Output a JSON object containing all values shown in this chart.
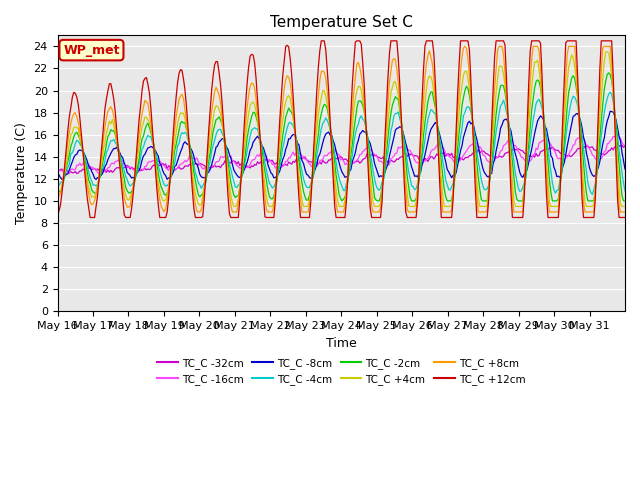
{
  "title": "Temperature Set C",
  "xlabel": "Time",
  "ylabel": "Temperature (C)",
  "ylim": [
    0,
    25
  ],
  "yticks": [
    0,
    2,
    4,
    6,
    8,
    10,
    12,
    14,
    16,
    18,
    20,
    22,
    24
  ],
  "x_tick_labels": [
    "May 16",
    "May 17",
    "May 18",
    "May 19",
    "May 20",
    "May 21",
    "May 22",
    "May 23",
    "May 24",
    "May 25",
    "May 26",
    "May 27",
    "May 28",
    "May 29",
    "May 30",
    "May 31"
  ],
  "legend_label": "WP_met",
  "series": [
    {
      "label": "TC_C -32cm",
      "color": "#cc00cc"
    },
    {
      "label": "TC_C -16cm",
      "color": "#ff44ff"
    },
    {
      "label": "TC_C -8cm",
      "color": "#0000cc"
    },
    {
      "label": "TC_C -4cm",
      "color": "#00cccc"
    },
    {
      "label": "TC_C -2cm",
      "color": "#00cc00"
    },
    {
      "label": "TC_C +4cm",
      "color": "#cccc00"
    },
    {
      "label": "TC_C +8cm",
      "color": "#ff9900"
    },
    {
      "label": "TC_C +12cm",
      "color": "#cc0000"
    }
  ],
  "bg_color": "#e8e8e8",
  "annotation_box_facecolor": "#ffffcc",
  "annotation_box_edgecolor": "#cc0000",
  "annotation_text_color": "#cc0000"
}
